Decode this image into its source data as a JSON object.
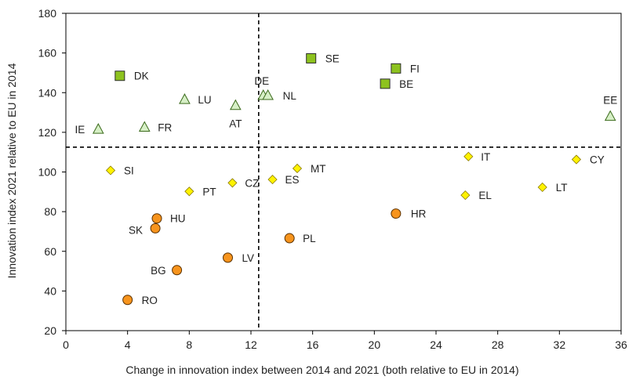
{
  "chart_data": {
    "type": "scatter",
    "title": "",
    "xlabel": "Change in innovation index between 2014 and 2021 (both relative to EU in 2014)",
    "ylabel": "Innovation index 2021 relative to EU in 2014",
    "xlim": [
      0,
      36
    ],
    "ylim": [
      20,
      180
    ],
    "xticks": [
      0,
      4,
      8,
      12,
      16,
      20,
      24,
      28,
      32,
      36
    ],
    "yticks": [
      20,
      40,
      60,
      80,
      100,
      120,
      140,
      160,
      180
    ],
    "grid": false,
    "reference_lines": {
      "x": 12.5,
      "y": 112.5
    },
    "groups": [
      {
        "marker": "square",
        "color": "#8dc21f",
        "points": [
          {
            "label": "DK",
            "x": 3.5,
            "y": 148.5
          },
          {
            "label": "SE",
            "x": 15.9,
            "y": 157.3
          },
          {
            "label": "FI",
            "x": 21.4,
            "y": 152.2
          },
          {
            "label": "BE",
            "x": 20.7,
            "y": 144.5
          }
        ]
      },
      {
        "marker": "triangle",
        "color": "#d6efc6",
        "points": [
          {
            "label": "LU",
            "x": 7.7,
            "y": 136.5
          },
          {
            "label": "AT",
            "x": 11.0,
            "y": 133.5
          },
          {
            "label": "DE",
            "x": 12.8,
            "y": 138.5
          },
          {
            "label": "NL",
            "x": 13.1,
            "y": 138.5
          },
          {
            "label": "IE",
            "x": 2.1,
            "y": 121.5
          },
          {
            "label": "FR",
            "x": 5.1,
            "y": 122.5
          },
          {
            "label": "EE",
            "x": 35.3,
            "y": 128.0
          }
        ]
      },
      {
        "marker": "diamond",
        "color": "#fff200",
        "points": [
          {
            "label": "SI",
            "x": 2.9,
            "y": 100.8
          },
          {
            "label": "PT",
            "x": 8.0,
            "y": 90.2
          },
          {
            "label": "CZ",
            "x": 10.8,
            "y": 94.5
          },
          {
            "label": "ES",
            "x": 13.4,
            "y": 96.2
          },
          {
            "label": "MT",
            "x": 15.0,
            "y": 101.8
          },
          {
            "label": "IT",
            "x": 26.1,
            "y": 107.8
          },
          {
            "label": "EL",
            "x": 25.9,
            "y": 88.3
          },
          {
            "label": "LT",
            "x": 30.9,
            "y": 92.3
          },
          {
            "label": "CY",
            "x": 33.1,
            "y": 106.3
          }
        ]
      },
      {
        "marker": "circle",
        "color": "#f7941d",
        "points": [
          {
            "label": "HU",
            "x": 5.9,
            "y": 76.6
          },
          {
            "label": "SK",
            "x": 5.8,
            "y": 71.6
          },
          {
            "label": "HR",
            "x": 21.4,
            "y": 79.0
          },
          {
            "label": "PL",
            "x": 14.5,
            "y": 66.6
          },
          {
            "label": "LV",
            "x": 10.5,
            "y": 56.8
          },
          {
            "label": "BG",
            "x": 7.2,
            "y": 50.5
          },
          {
            "label": "RO",
            "x": 4.0,
            "y": 35.5
          }
        ]
      }
    ]
  }
}
